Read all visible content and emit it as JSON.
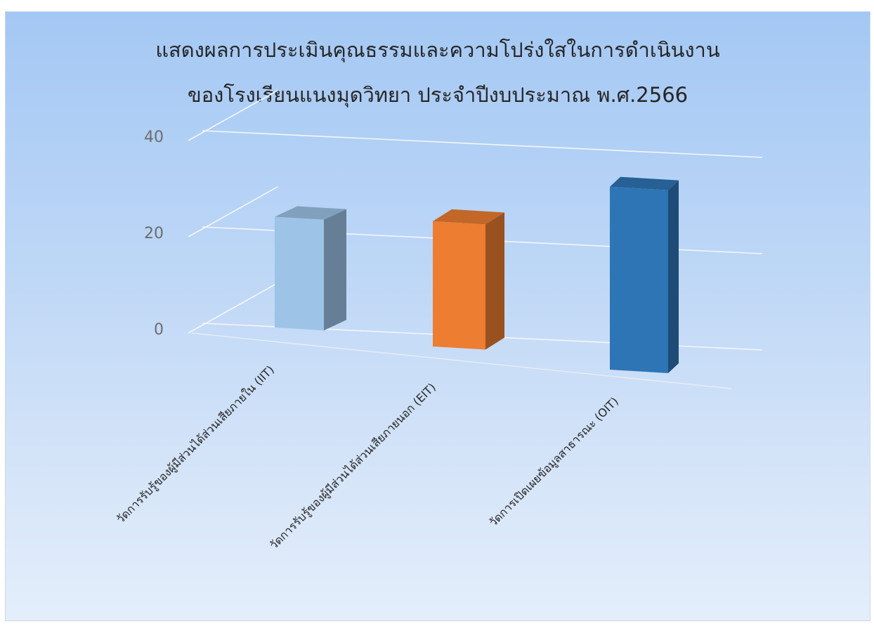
{
  "chart_data": {
    "type": "bar",
    "title": "แสดงผลการประเมินคุณธรรมและความโปร่งใสในการดำเนินงาน",
    "subtitle": "ของโรงเรียนแนงมุดวิทยา ประจำปีงบประมาณ พ.ศ.2566",
    "categories": [
      "วัดการรับรู้ของผู้มีส่วนได้ส่วนเสียภายใน (IIT)",
      "วัดการรับรู้ของผู้มีส่วนได้ส่วนเสียภายนอก (EIT)",
      "วัดการเปิดเผยข้อมูลสาธารณะ (OIT)"
    ],
    "values": [
      23,
      26,
      38
    ],
    "colors": [
      "#9dc3e6",
      "#ed7d31",
      "#2e75b6"
    ],
    "yticks": [
      0,
      20,
      40
    ],
    "ylim": [
      0,
      40
    ],
    "grid": true,
    "legend": "none",
    "view": "3d"
  }
}
